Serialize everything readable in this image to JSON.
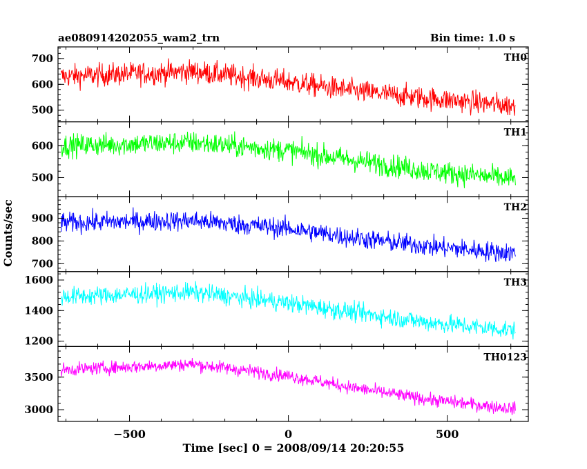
{
  "header": {
    "source_name": "ae080914202055_wam2_trn",
    "bin_time": "Bin time: 1.0 s"
  },
  "chart_data": {
    "type": "line",
    "xlabel": "Time [sec] 0 = 2008/09/14 20:20:55",
    "ylabel": "Counts/sec",
    "xlim": [
      -725,
      755
    ],
    "xticks": [
      -500,
      0,
      500
    ],
    "xtick_labels": [
      "−500",
      "0",
      "500"
    ],
    "panels": [
      {
        "name": "TH0",
        "color": "#ff0000",
        "ylim": [
          455,
          745
        ],
        "yticks": [
          500,
          600,
          700
        ],
        "trend": [
          [
            -720,
            630
          ],
          [
            -300,
            650
          ],
          [
            0,
            610
          ],
          [
            200,
            575
          ],
          [
            450,
            545
          ],
          [
            720,
            515
          ]
        ],
        "amplitude": 40
      },
      {
        "name": "TH1",
        "color": "#00ff00",
        "ylim": [
          440,
          675
        ],
        "yticks": [
          500,
          600
        ],
        "trend": [
          [
            -720,
            600
          ],
          [
            -300,
            610
          ],
          [
            0,
            585
          ],
          [
            200,
            555
          ],
          [
            450,
            520
          ],
          [
            720,
            495
          ]
        ],
        "amplitude": 32
      },
      {
        "name": "TH2",
        "color": "#0000ff",
        "ylim": [
          665,
          995
        ],
        "yticks": [
          700,
          800,
          900
        ],
        "trend": [
          [
            -720,
            880
          ],
          [
            -300,
            890
          ],
          [
            0,
            855
          ],
          [
            200,
            815
          ],
          [
            450,
            775
          ],
          [
            720,
            745
          ]
        ],
        "amplitude": 40
      },
      {
        "name": "TH3",
        "color": "#00ffff",
        "ylim": [
          1165,
          1655
        ],
        "yticks": [
          1200,
          1400,
          1600
        ],
        "trend": [
          [
            -720,
            1490
          ],
          [
            -300,
            1520
          ],
          [
            0,
            1450
          ],
          [
            200,
            1390
          ],
          [
            450,
            1320
          ],
          [
            720,
            1270
          ]
        ],
        "amplitude": 55
      },
      {
        "name": "TH0123",
        "color": "#ff00ff",
        "ylim": [
          2820,
          3970
        ],
        "yticks": [
          3000,
          3500
        ],
        "trend": [
          [
            -720,
            3610
          ],
          [
            -300,
            3700
          ],
          [
            0,
            3520
          ],
          [
            200,
            3340
          ],
          [
            450,
            3150
          ],
          [
            720,
            3010
          ]
        ],
        "amplitude": 90
      }
    ]
  }
}
